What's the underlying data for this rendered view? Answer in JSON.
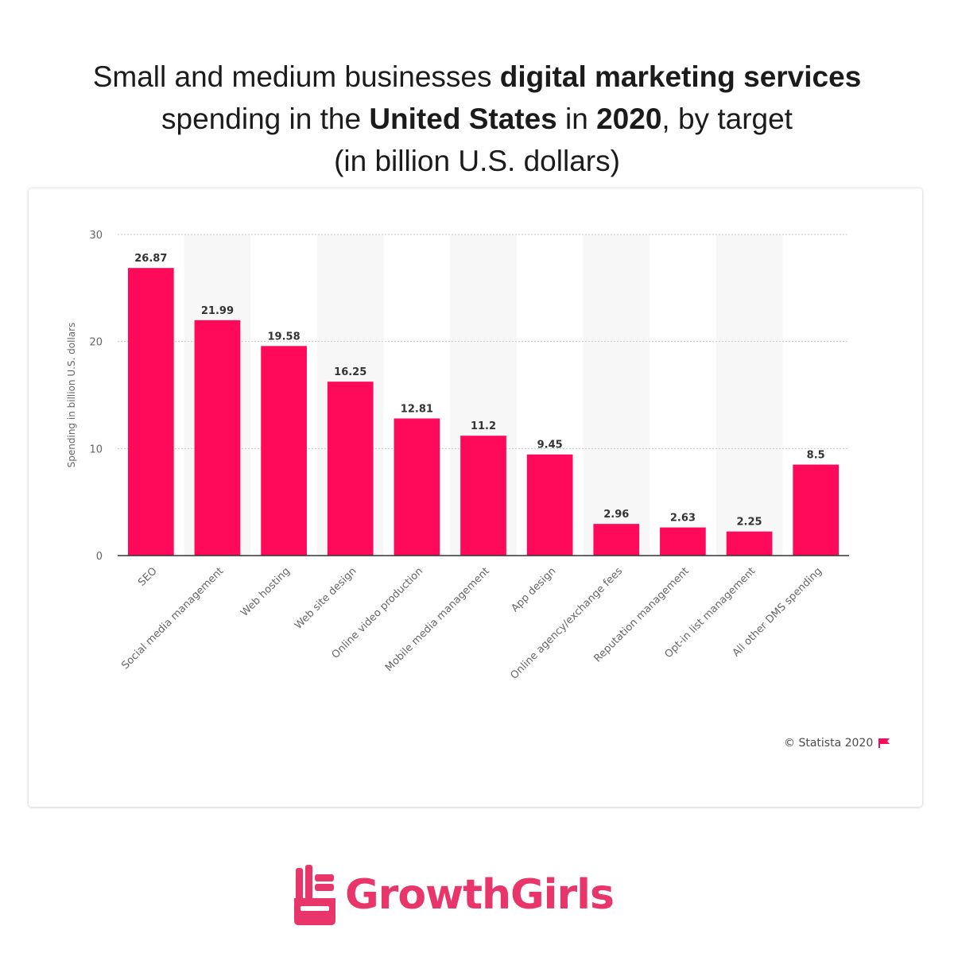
{
  "title": {
    "line1_a": "Small and medium businesses ",
    "line1_b": "digital marketing services",
    "line2_a": "spending in the ",
    "line2_b": "United States",
    "line2_c": " in ",
    "line2_d": "2020",
    "line2_e": ", by target",
    "line3": "(in billion U.S. dollars)"
  },
  "credit": {
    "text": "© Statista 2020",
    "icon": "flag-icon"
  },
  "logo": {
    "text": "GrowthGirls",
    "icon": "hand-icon",
    "color": "#e8356a"
  },
  "colors": {
    "bar": "#ff0a5a",
    "band": "#f7f7f7",
    "grid": "#c8c8c8",
    "axis": "#333333",
    "label": "#333333",
    "tick": "#666666"
  },
  "chart_data": {
    "type": "bar",
    "title": "Small and medium businesses digital marketing services spending in the United States in 2020, by target (in billion U.S. dollars)",
    "xlabel": "",
    "ylabel": "Spending in billion U.S. dollars",
    "ylim": [
      0,
      30
    ],
    "yticks": [
      0,
      10,
      20,
      30
    ],
    "grid": true,
    "categories": [
      "SEO",
      "Social media management",
      "Web hosting",
      "Web site design",
      "Online video production",
      "Mobile media management",
      "App design",
      "Online agency/exchange fees",
      "Reputation management",
      "Opt-in list management",
      "All other DMS spending"
    ],
    "values": [
      26.87,
      21.99,
      19.58,
      16.25,
      12.81,
      11.2,
      9.45,
      2.96,
      2.63,
      2.25,
      8.5
    ],
    "value_labels": [
      "26.87",
      "21.99",
      "19.58",
      "16.25",
      "12.81",
      "11.2",
      "9.45",
      "2.96",
      "2.63",
      "2.25",
      "8.5"
    ]
  }
}
